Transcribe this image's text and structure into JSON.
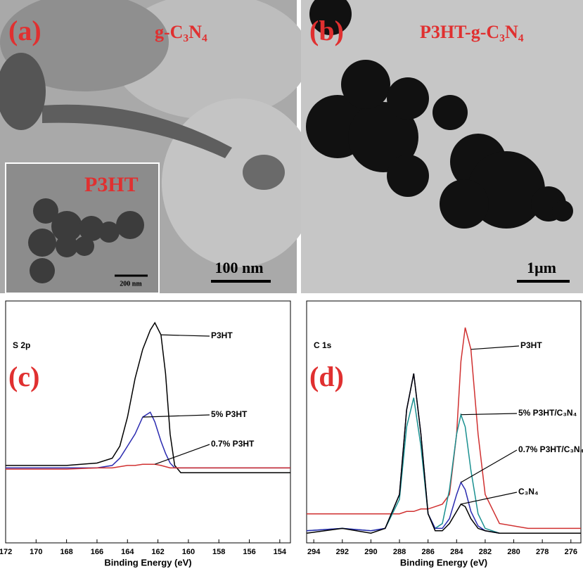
{
  "images": [
    {
      "panel_label": "(a)",
      "title": "g-C₃N₄",
      "inset_title": "P3HT",
      "inset_scale_bar": "200 nm",
      "scale_bar": "100 nm"
    },
    {
      "panel_label": "(b)",
      "title": "P3HT-g-C₃N₄",
      "scale_bar": "1μm"
    }
  ],
  "chart_data": [
    {
      "type": "line",
      "panel_label": "(c)",
      "subtitle": "S 2p",
      "x_label": "Binding Energy (eV)",
      "x": [
        172,
        168,
        166,
        165,
        164.5,
        164,
        163.5,
        163,
        162.5,
        162.2,
        161.8,
        161.5,
        161.2,
        160.9,
        160.5,
        158,
        153.3
      ],
      "xlim": [
        172,
        153.3
      ],
      "xticks": [
        172,
        170,
        168,
        166,
        164,
        162,
        160,
        158,
        156,
        154
      ],
      "ylim": [
        0,
        100
      ],
      "series": [
        {
          "name": "P3HT",
          "color": "#000000",
          "values": [
            32,
            32,
            33,
            35,
            40,
            52,
            68,
            80,
            88,
            91,
            86,
            70,
            45,
            32,
            29,
            29,
            29
          ]
        },
        {
          "name": "5% P3HT",
          "color": "#2b2bb0",
          "values": [
            31,
            31,
            31,
            32,
            35,
            40,
            45,
            52,
            54,
            50,
            42,
            37,
            33,
            31,
            31,
            31,
            31
          ]
        },
        {
          "name": "0.7% P3HT",
          "color": "#d03030",
          "values": [
            30.5,
            30.5,
            31,
            31,
            31.5,
            32,
            32,
            32.5,
            32.5,
            32.5,
            32,
            31.5,
            31,
            31,
            31,
            31,
            31
          ]
        }
      ]
    },
    {
      "type": "line",
      "panel_label": "(d)",
      "subtitle": "C 1s",
      "x_label": "Binding Energy (eV)",
      "x": [
        294.5,
        292,
        290,
        289,
        288,
        287.5,
        287,
        286.5,
        286,
        285.5,
        285,
        284.5,
        284,
        283.7,
        283.4,
        283,
        282.5,
        282,
        281,
        279,
        277,
        275.3
      ],
      "xlim": [
        294.5,
        275.3
      ],
      "xticks": [
        294,
        292,
        290,
        288,
        286,
        284,
        282,
        280,
        278,
        276
      ],
      "ylim": [
        0,
        100
      ],
      "series": [
        {
          "name": "P3HT",
          "color": "#d03030",
          "values": [
            12,
            12,
            12,
            12,
            12,
            13,
            13,
            14,
            14,
            15,
            16,
            20,
            45,
            75,
            89,
            80,
            45,
            20,
            8,
            6,
            6,
            6
          ]
        },
        {
          "name": "5% P3HT/C₃N₄",
          "color": "#1a9090",
          "values": [
            5,
            6,
            5,
            6,
            18,
            48,
            60,
            40,
            12,
            6,
            8,
            22,
            45,
            53,
            48,
            30,
            12,
            6,
            4,
            4,
            4,
            4
          ]
        },
        {
          "name": "0.7% P3HT/C₃N₄",
          "color": "#2b2bb0",
          "values": [
            5,
            6,
            5,
            6,
            20,
            55,
            70,
            45,
            12,
            6,
            6,
            10,
            20,
            25,
            22,
            13,
            7,
            5,
            4,
            4,
            4,
            4
          ]
        },
        {
          "name": "C₃N₄",
          "color": "#000000",
          "values": [
            4,
            6,
            4,
            6,
            20,
            55,
            70,
            45,
            12,
            5,
            5,
            8,
            13,
            16,
            15,
            10,
            6,
            5,
            4,
            4,
            4,
            4
          ]
        }
      ]
    }
  ]
}
